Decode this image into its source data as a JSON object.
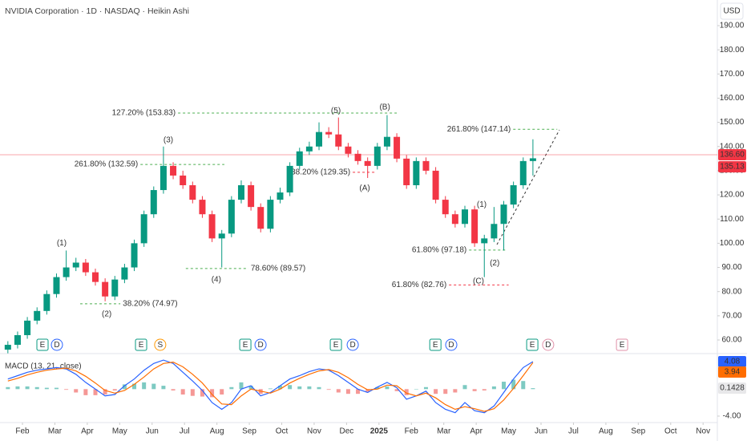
{
  "chart_data": {
    "type": "candlestick",
    "title": "NVIDIA Corporation · 1D · NASDAQ · Heikin Ashi",
    "currency": "USD",
    "up_color": "#089981",
    "down_color": "#f23645",
    "x": [
      0.55,
      0.85,
      1.15,
      1.45,
      1.75,
      2.05,
      2.35,
      2.65,
      2.95,
      3.25,
      3.55,
      3.85,
      4.15,
      4.45,
      4.75,
      5.05,
      5.35,
      5.65,
      5.95,
      6.25,
      6.55,
      6.85,
      7.15,
      7.45,
      7.75,
      8.05,
      8.35,
      8.65,
      8.95,
      9.25,
      9.55,
      9.85,
      10.15,
      10.45,
      10.75,
      11.05,
      11.35,
      11.65,
      11.95,
      12.25,
      12.55,
      12.85,
      13.15,
      13.45,
      13.75,
      14.05,
      14.35,
      14.65,
      14.95,
      15.25,
      15.55,
      15.85,
      16.15,
      16.45,
      16.75
    ],
    "open": [
      56,
      58,
      62,
      68,
      72,
      79,
      86,
      90,
      92,
      88,
      84,
      78,
      85,
      90,
      100,
      112,
      122,
      132,
      128,
      124,
      118,
      112,
      102,
      104,
      118,
      124,
      115,
      106,
      118,
      121,
      132,
      138,
      140,
      146,
      145,
      140,
      137,
      134,
      132,
      140,
      144,
      135,
      124,
      134,
      130,
      118,
      112,
      108,
      114,
      100,
      102,
      108,
      116,
      124,
      134
    ],
    "high": [
      59.5,
      63.5,
      69.5,
      73.5,
      80.5,
      87.5,
      97,
      94,
      93.5,
      89.5,
      85.5,
      86.5,
      91.5,
      101.5,
      113.5,
      123.5,
      140,
      133.5,
      130,
      125.5,
      119.5,
      113.5,
      105.5,
      119.5,
      126,
      125.5,
      116.5,
      119.5,
      123,
      133.5,
      139.5,
      142,
      150,
      148,
      152,
      141.5,
      138.5,
      135.5,
      141.5,
      153,
      145.5,
      136.5,
      135.5,
      135.5,
      131.5,
      119.5,
      113.5,
      115.5,
      115.5,
      103.5,
      115,
      117.5,
      125.5,
      135.5,
      143
    ],
    "low": [
      54.5,
      56.5,
      60.5,
      66.5,
      70.5,
      77.5,
      84.5,
      88.5,
      86.5,
      82.5,
      76,
      76.5,
      83.5,
      88.5,
      98.5,
      110.5,
      120.5,
      126.5,
      122.5,
      116.5,
      110.5,
      100.5,
      90,
      102.5,
      116.5,
      113.5,
      104.5,
      104.5,
      116.5,
      119.5,
      130.5,
      136.5,
      138.5,
      143.5,
      138.5,
      135.5,
      132.5,
      127,
      130.5,
      138.5,
      133.5,
      122.5,
      122.5,
      128.5,
      116.5,
      110.5,
      106.5,
      106.5,
      98.5,
      86,
      100.5,
      97,
      114.5,
      122.5,
      128
    ],
    "close": [
      58,
      62,
      68,
      72,
      79,
      86,
      90,
      92,
      88,
      84,
      78,
      85,
      90,
      100,
      112,
      122,
      132,
      128,
      124,
      118,
      112,
      102,
      104,
      118,
      124,
      115,
      106,
      118,
      121,
      132,
      138,
      140,
      146,
      145,
      140,
      137,
      134,
      132,
      140,
      144,
      135,
      124,
      134,
      130,
      118,
      112,
      108,
      114,
      100,
      102,
      108,
      116,
      124,
      134,
      135.13
    ],
    "xlim": [
      0.307,
      22.44
    ],
    "ylim": [
      54.7,
      200.6
    ],
    "xticks": [
      {
        "value": 1,
        "label": "Feb"
      },
      {
        "value": 2,
        "label": "Mar"
      },
      {
        "value": 3,
        "label": "Apr"
      },
      {
        "value": 4,
        "label": "May"
      },
      {
        "value": 5,
        "label": "Jun"
      },
      {
        "value": 6,
        "label": "Jul"
      },
      {
        "value": 7,
        "label": "Aug"
      },
      {
        "value": 8,
        "label": "Sep"
      },
      {
        "value": 9,
        "label": "Oct"
      },
      {
        "value": 10,
        "label": "Nov"
      },
      {
        "value": 11,
        "label": "Dec"
      },
      {
        "value": 12,
        "label": "2025"
      },
      {
        "value": 13,
        "label": "Feb"
      },
      {
        "value": 14,
        "label": "Mar"
      },
      {
        "value": 15,
        "label": "Apr"
      },
      {
        "value": 16,
        "label": "May"
      },
      {
        "value": 17,
        "label": "Jun"
      },
      {
        "value": 18,
        "label": "Jul"
      },
      {
        "value": 19,
        "label": "Aug"
      },
      {
        "value": 20,
        "label": "Sep"
      },
      {
        "value": 21,
        "label": "Oct"
      },
      {
        "value": 22,
        "label": "Nov"
      }
    ],
    "yticks": [
      {
        "value": 60,
        "label": "60.00"
      },
      {
        "value": 70,
        "label": "70.00"
      },
      {
        "value": 80,
        "label": "80.00"
      },
      {
        "value": 90,
        "label": "90.00"
      },
      {
        "value": 100,
        "label": "100.00"
      },
      {
        "value": 110,
        "label": "110.00"
      },
      {
        "value": 120,
        "label": "120.00"
      },
      {
        "value": 130,
        "label": "130.00"
      },
      {
        "value": 140,
        "label": "140.00"
      },
      {
        "value": 150,
        "label": "150.00"
      },
      {
        "value": 160,
        "label": "160.00"
      },
      {
        "value": 170,
        "label": "170.00"
      },
      {
        "value": 180,
        "label": "180.00"
      },
      {
        "value": 190,
        "label": "190.00"
      }
    ],
    "price_line": {
      "value": 136.6,
      "label": "136.60",
      "color": "#f23645"
    },
    "fib_levels": [
      {
        "label": "261.80% (132.59)",
        "value": 132.59,
        "x": [
          4.64,
          7.23
        ],
        "color": "#4caf50",
        "label_side": "left"
      },
      {
        "label": "38.20% (74.97)",
        "value": 74.97,
        "x": [
          2.78,
          4.02
        ],
        "color": "#4caf50",
        "label_side": "right"
      },
      {
        "label": "78.60% (89.57)",
        "value": 89.57,
        "x": [
          6.04,
          7.97
        ],
        "color": "#4caf50",
        "label_side": "right"
      },
      {
        "label": "127.20% (153.83)",
        "value": 153.83,
        "x": [
          5.8,
          12.55
        ],
        "color": "#4caf50",
        "label_side": "left"
      },
      {
        "label": "38.20% (129.35)",
        "value": 129.35,
        "x": [
          11.19,
          11.93
        ],
        "color": "#f23645",
        "label_side": "left"
      },
      {
        "label": "261.80% (147.14)",
        "value": 147.14,
        "x": [
          16.14,
          17.5
        ],
        "color": "#4caf50",
        "label_side": "left"
      },
      {
        "label": "61.80% (97.18)",
        "value": 97.18,
        "x": [
          14.78,
          15.94
        ],
        "color": "#4caf50",
        "label_side": "left"
      },
      {
        "label": "61.80% (82.76)",
        "value": 82.76,
        "x": [
          14.16,
          16.0
        ],
        "color": "#f23645",
        "label_side": "left"
      }
    ],
    "wave_labels": [
      {
        "text": "(1)",
        "x": 2.21,
        "y": 100,
        "color": "#4caf50"
      },
      {
        "text": "(2)",
        "x": 3.6,
        "y": 70.6,
        "color": "#4caf50"
      },
      {
        "text": "(3)",
        "x": 5.5,
        "y": 142.6,
        "color": "#4caf50"
      },
      {
        "text": "(4)",
        "x": 6.98,
        "y": 84.9,
        "color": "#4caf50"
      },
      {
        "text": "(5)",
        "x": 10.67,
        "y": 154.8,
        "color": "#4caf50"
      },
      {
        "text": "(A)",
        "x": 11.56,
        "y": 122.7,
        "color": "#f23645"
      },
      {
        "text": "(B)",
        "x": 12.18,
        "y": 156.2,
        "color": "#f23645"
      },
      {
        "text": "(C)",
        "x": 15.07,
        "y": 84.2,
        "color": "#f23645"
      },
      {
        "text": "(1)",
        "x": 15.17,
        "y": 116,
        "color": "#4caf50"
      },
      {
        "text": "(2)",
        "x": 15.57,
        "y": 91.8,
        "color": "#4caf50"
      }
    ],
    "events": [
      {
        "label": "E",
        "x": 1.618
      },
      {
        "label": "D",
        "x": 2.063
      },
      {
        "label": "E",
        "x": 4.66
      },
      {
        "label": "S",
        "x": 5.25
      },
      {
        "label": "E",
        "x": 7.876
      },
      {
        "label": "D",
        "x": 8.346
      },
      {
        "label": "E",
        "x": 10.67
      },
      {
        "label": "D",
        "x": 11.19
      },
      {
        "label": "E",
        "x": 13.74
      },
      {
        "label": "D",
        "x": 14.23
      },
      {
        "label": "E",
        "x": 16.73
      },
      {
        "label": "D",
        "x": 17.22
      },
      {
        "label": "E",
        "x": 19.5
      }
    ],
    "macd": {
      "title": "MACD (13, 21, close)",
      "ylim": [
        -5.67,
        4.79
      ],
      "yticks": [
        {
          "value": -4,
          "label": "-4.00"
        }
      ],
      "macd_line": {
        "color": "#2962ff",
        "values": [
          1.5,
          2,
          2.5,
          2.8,
          3,
          3.2,
          3,
          2.2,
          1,
          0,
          -1,
          -0.8,
          0.5,
          1.5,
          2.8,
          3.8,
          4.3,
          3.8,
          2.5,
          1.2,
          -0.2,
          -2,
          -3,
          -2,
          0,
          0.5,
          -1,
          -0.5,
          0.5,
          1.5,
          2,
          2.6,
          3,
          2.8,
          2,
          1,
          0,
          -0.5,
          0.3,
          1,
          0.2,
          -1.5,
          -1,
          -0.3,
          -2,
          -3,
          -3.5,
          -2,
          -3.2,
          -3.5,
          -2.5,
          -0.5,
          1.5,
          3.2,
          4.08
        ]
      },
      "signal_line": {
        "color": "#ff6d00",
        "values": [
          1.2,
          1.6,
          2.1,
          2.5,
          2.8,
          3,
          3.1,
          2.7,
          1.9,
          0.9,
          -0.2,
          -0.6,
          -0.2,
          0.7,
          1.8,
          3,
          3.8,
          4,
          3.3,
          2.2,
          0.9,
          -0.8,
          -2.2,
          -2.3,
          -1,
          0,
          -0.3,
          -0.6,
          0,
          0.9,
          1.6,
          2.2,
          2.7,
          2.9,
          2.5,
          1.7,
          0.7,
          -0.1,
          0,
          0.6,
          0.5,
          -0.6,
          -1,
          -0.6,
          -1.3,
          -2.3,
          -3,
          -2.6,
          -2.9,
          -3.3,
          -2.9,
          -1.6,
          0.1,
          2,
          3.94
        ]
      },
      "histogram": {
        "up_color": "#26a69a",
        "down_color": "#ef5350",
        "values": [
          0.3,
          0.4,
          0.4,
          0.3,
          0.2,
          0.2,
          -0.1,
          -0.5,
          -0.9,
          -0.9,
          -0.8,
          -0.2,
          0.7,
          0.8,
          1,
          0.8,
          0.5,
          -0.2,
          -0.8,
          -1,
          -1.1,
          -1.2,
          -0.8,
          0.3,
          1,
          0.5,
          -0.7,
          0.1,
          0.5,
          0.6,
          0.4,
          0.4,
          0.3,
          -0.1,
          -0.5,
          -0.7,
          -0.7,
          -0.4,
          0.3,
          0.4,
          -0.3,
          -0.9,
          0,
          0.3,
          -0.7,
          -0.7,
          -0.5,
          0.6,
          -0.3,
          -0.2,
          0.4,
          1.1,
          1.4,
          1.2,
          0.1428
        ]
      }
    }
  }
}
